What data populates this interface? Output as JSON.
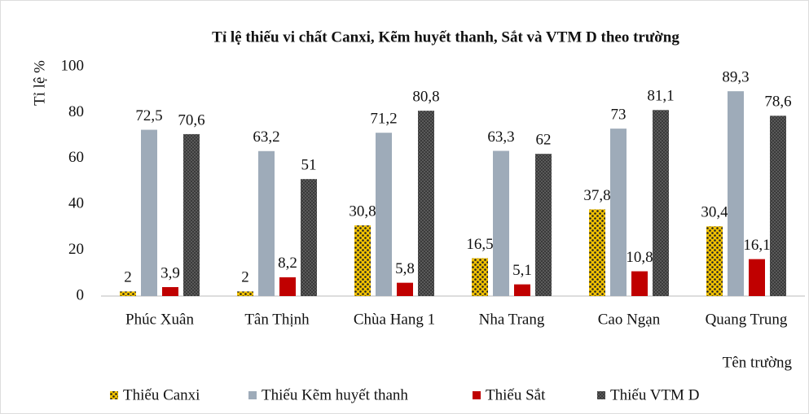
{
  "chart_data": {
    "type": "bar",
    "title": "Tỉ lệ thiếu vi chất Canxi, Kẽm huyết thanh,  Sắt và VTM D theo trường",
    "y_label": "Tỉ lệ %",
    "x_label": "Tên trường",
    "categories": [
      "Phúc Xuân",
      "Tân Thịnh",
      "Chùa Hang 1",
      "Nha Trang",
      "Cao Ngạn",
      "Quang Trung"
    ],
    "series": [
      {
        "name": "Thiếu  Canxi",
        "color": "#f2c200",
        "values": [
          2,
          2,
          30.8,
          16.5,
          37.8,
          30.4
        ],
        "value_labels": [
          "2",
          "2",
          "30,8",
          "16,5",
          "37,8",
          "30,4"
        ]
      },
      {
        "name": "Thiếu  Kẽm huyết  thanh",
        "color": "#9eabb9",
        "values": [
          72.5,
          63.2,
          71.2,
          63.3,
          73,
          89.3
        ],
        "value_labels": [
          "72,5",
          "63,2",
          "71,2",
          "63,3",
          "73",
          "89,3"
        ]
      },
      {
        "name": "Thiếu  Sắt",
        "color": "#c00000",
        "values": [
          3.9,
          8.2,
          5.8,
          5.1,
          10.8,
          16.1
        ],
        "value_labels": [
          "3,9",
          "8,2",
          "5,8",
          "5,1",
          "10,8",
          "16,1"
        ]
      },
      {
        "name": "Thiếu  VTM  D",
        "color": "#5a5a5a",
        "values": [
          70.6,
          51,
          80.8,
          62,
          81.1,
          78.6
        ],
        "value_labels": [
          "70,6",
          "51",
          "80,8",
          "62",
          "81,1",
          "78,6"
        ]
      }
    ],
    "ylim": [
      0,
      100
    ],
    "yticks": [
      0,
      20,
      40,
      60,
      80,
      100
    ],
    "grid": false
  }
}
